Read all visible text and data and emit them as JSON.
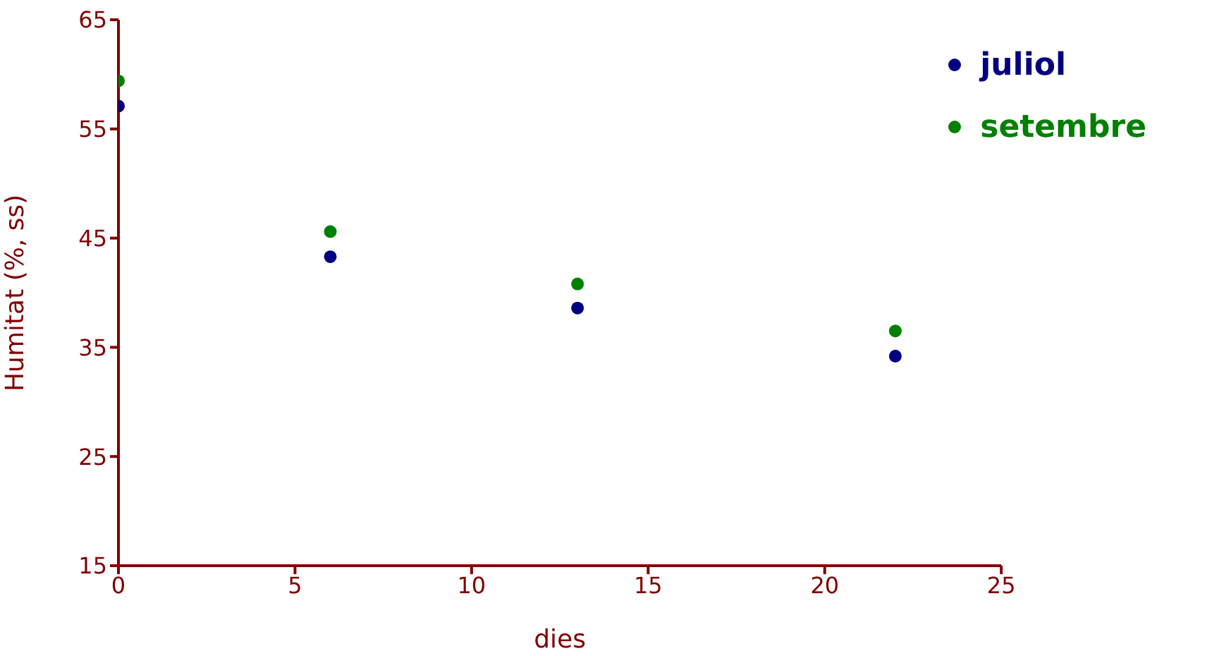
{
  "chart_data": {
    "type": "scatter",
    "xlabel": "dies",
    "ylabel": "Humitat (%, ss)",
    "x": [
      0,
      6,
      13,
      22
    ],
    "series": [
      {
        "name": "juliol",
        "color": "#000080",
        "values": [
          57.1,
          43.3,
          38.6,
          34.2
        ]
      },
      {
        "name": "setembre",
        "color": "#008000",
        "values": [
          59.4,
          45.6,
          40.8,
          36.5
        ]
      }
    ],
    "xlim": [
      0,
      25
    ],
    "xticks": [
      0,
      5,
      10,
      15,
      20,
      25
    ],
    "ylim": [
      15,
      65
    ],
    "yticks": [
      15,
      25,
      35,
      45,
      55,
      65
    ],
    "grid": false,
    "legend": "top right",
    "marker": "circle"
  }
}
